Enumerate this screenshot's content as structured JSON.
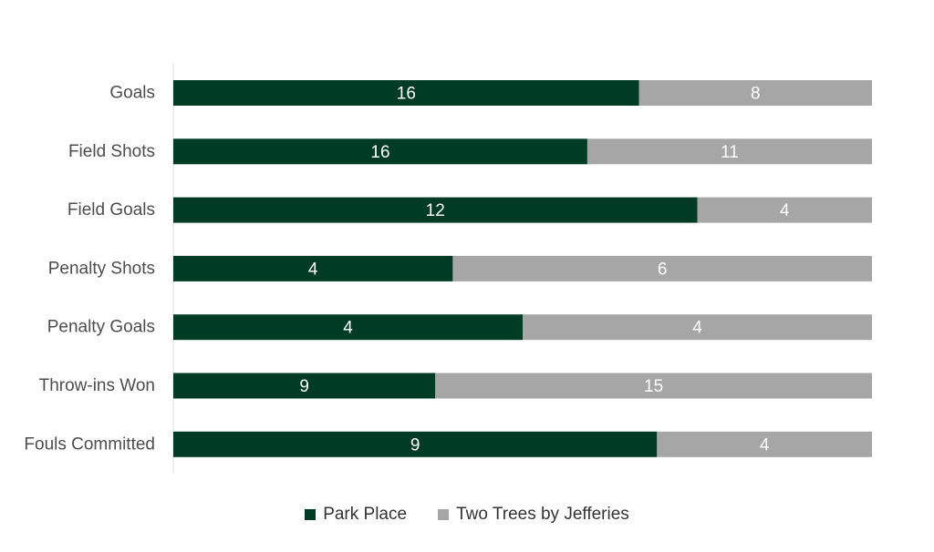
{
  "chart_data": {
    "type": "bar",
    "orientation": "horizontal",
    "stacked": "100%",
    "categories": [
      "Goals",
      "Field Shots",
      "Field Goals",
      "Penalty Shots",
      "Penalty Goals",
      "Throw-ins Won",
      "Fouls Committed"
    ],
    "series": [
      {
        "name": "Park Place",
        "values": [
          16,
          16,
          12,
          4,
          4,
          9,
          9
        ],
        "color": "#003b25"
      },
      {
        "name": "Two Trees by Jefferies",
        "values": [
          8,
          11,
          4,
          6,
          4,
          15,
          4
        ],
        "color": "#a6a6a6"
      }
    ],
    "grid": false,
    "legend_position": "bottom"
  }
}
